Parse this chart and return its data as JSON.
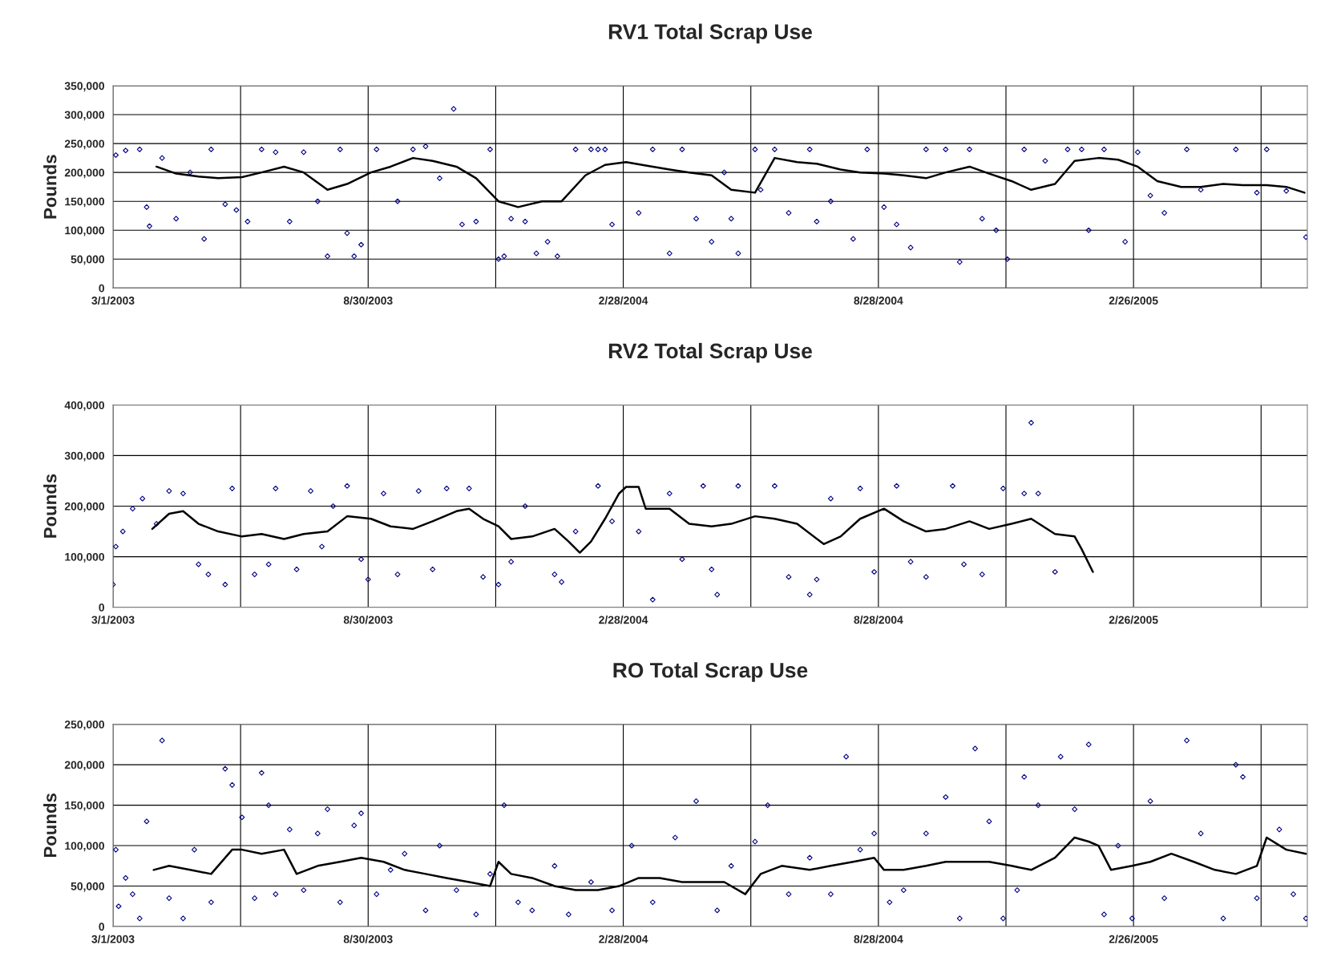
{
  "chart_data": [
    {
      "type": "scatter",
      "title": "RV1 Total Scrap Use",
      "ylabel": "Pounds",
      "grid": true,
      "xlim": [
        "2003-03-01",
        "2005-06-30"
      ],
      "xticks": [
        {
          "value": "2003-03-01",
          "label": "3/1/2003"
        },
        {
          "value": "2003-05-31",
          "label": null
        },
        {
          "value": "2003-08-30",
          "label": "8/30/2003"
        },
        {
          "value": "2003-11-29",
          "label": null
        },
        {
          "value": "2004-02-28",
          "label": "2/28/2004"
        },
        {
          "value": "2004-05-29",
          "label": null
        },
        {
          "value": "2004-08-28",
          "label": "8/28/2004"
        },
        {
          "value": "2004-11-27",
          "label": null
        },
        {
          "value": "2005-02-26",
          "label": "2/26/2005"
        },
        {
          "value": "2005-05-28",
          "label": null
        }
      ],
      "ylim": [
        0,
        350000
      ],
      "yticks": [
        0,
        {
          "value": 50000,
          "label": "50,000"
        },
        {
          "value": 100000,
          "label": "100,000"
        },
        {
          "value": 150000,
          "label": "150,000"
        },
        {
          "value": 200000,
          "label": "200,000"
        },
        {
          "value": 250000,
          "label": "250,000"
        },
        {
          "value": 300000,
          "label": "300,000"
        },
        {
          "value": 350000,
          "label": "350,000"
        }
      ],
      "series": [
        {
          "color": "#000080",
          "marker": "diamond",
          "x": [
            "2003-03-03",
            "2003-03-10",
            "2003-03-20",
            "2003-03-25",
            "2003-03-27",
            "2003-04-05",
            "2003-04-15",
            "2003-04-25",
            "2003-05-05",
            "2003-05-10",
            "2003-05-20",
            "2003-05-28",
            "2003-06-05",
            "2003-06-15",
            "2003-06-25",
            "2003-07-05",
            "2003-07-15",
            "2003-07-25",
            "2003-08-01",
            "2003-08-10",
            "2003-08-15",
            "2003-08-20",
            "2003-08-25",
            "2003-09-05",
            "2003-09-20",
            "2003-10-01",
            "2003-10-10",
            "2003-10-20",
            "2003-10-30",
            "2003-11-05",
            "2003-11-15",
            "2003-11-25",
            "2003-12-01",
            "2003-12-05",
            "2003-12-10",
            "2003-12-20",
            "2003-12-28",
            "2004-01-05",
            "2004-01-12",
            "2004-01-25",
            "2004-02-05",
            "2004-02-10",
            "2004-02-15",
            "2004-02-20",
            "2004-03-10",
            "2004-03-20",
            "2004-04-01",
            "2004-04-10",
            "2004-04-20",
            "2004-05-01",
            "2004-05-10",
            "2004-05-15",
            "2004-05-20",
            "2004-06-01",
            "2004-06-05",
            "2004-06-15",
            "2004-06-25",
            "2004-07-10",
            "2004-07-15",
            "2004-07-25",
            "2004-08-10",
            "2004-08-20",
            "2004-09-01",
            "2004-09-10",
            "2004-09-20",
            "2004-10-01",
            "2004-10-15",
            "2004-10-25",
            "2004-11-01",
            "2004-11-10",
            "2004-11-20",
            "2004-11-28",
            "2004-12-10",
            "2004-12-25",
            "2005-01-10",
            "2005-01-20",
            "2005-01-25",
            "2005-02-05",
            "2005-02-20",
            "2005-03-01",
            "2005-03-10",
            "2005-03-20",
            "2005-04-05",
            "2005-04-15",
            "2005-05-10",
            "2005-05-25",
            "2005-06-01",
            "2005-06-15",
            "2005-06-29"
          ],
          "values": [
            230000,
            238000,
            240000,
            140000,
            107000,
            225000,
            120000,
            200000,
            85000,
            240000,
            145000,
            135000,
            115000,
            240000,
            235000,
            115000,
            235000,
            150000,
            55000,
            240000,
            95000,
            55000,
            75000,
            240000,
            150000,
            240000,
            245000,
            190000,
            310000,
            110000,
            115000,
            240000,
            50000,
            55000,
            120000,
            115000,
            60000,
            80000,
            55000,
            240000,
            240000,
            240000,
            240000,
            110000,
            130000,
            240000,
            60000,
            240000,
            120000,
            80000,
            200000,
            120000,
            60000,
            240000,
            170000,
            240000,
            130000,
            240000,
            115000,
            150000,
            85000,
            240000,
            140000,
            110000,
            70000,
            240000,
            240000,
            45000,
            240000,
            120000,
            100000,
            50000,
            240000,
            220000,
            240000,
            240000,
            100000,
            240000,
            80000,
            235000,
            160000,
            130000,
            240000,
            170000,
            240000,
            165000,
            240000,
            168000,
            88000
          ]
        },
        {
          "type": "line",
          "color": "#000000",
          "marker": "none",
          "line_style": "solid",
          "x": [
            "2003-04-01",
            "2003-04-15",
            "2003-05-01",
            "2003-05-15",
            "2003-06-01",
            "2003-06-15",
            "2003-07-01",
            "2003-07-15",
            "2003-08-01",
            "2003-08-15",
            "2003-09-01",
            "2003-09-15",
            "2003-10-01",
            "2003-10-15",
            "2003-11-01",
            "2003-11-15",
            "2003-12-01",
            "2003-12-15",
            "2004-01-01",
            "2004-01-15",
            "2004-02-01",
            "2004-02-15",
            "2004-03-01",
            "2004-03-15",
            "2004-04-01",
            "2004-04-15",
            "2004-05-01",
            "2004-05-15",
            "2004-06-01",
            "2004-06-15",
            "2004-07-01",
            "2004-07-15",
            "2004-08-01",
            "2004-08-15",
            "2004-09-01",
            "2004-09-15",
            "2004-10-01",
            "2004-10-15",
            "2004-11-01",
            "2004-11-15",
            "2004-12-01",
            "2004-12-15",
            "2005-01-01",
            "2005-01-15",
            "2005-02-01",
            "2005-02-15",
            "2005-03-01",
            "2005-03-15",
            "2005-04-01",
            "2005-04-15",
            "2005-05-01",
            "2005-05-15",
            "2005-06-01",
            "2005-06-15",
            "2005-06-28"
          ],
          "values": [
            210000,
            198000,
            193000,
            190000,
            192000,
            200000,
            210000,
            200000,
            170000,
            180000,
            200000,
            210000,
            225000,
            220000,
            210000,
            190000,
            150000,
            140000,
            150000,
            150000,
            195000,
            213000,
            218000,
            212000,
            205000,
            200000,
            195000,
            170000,
            165000,
            225000,
            218000,
            215000,
            205000,
            200000,
            198000,
            195000,
            190000,
            200000,
            210000,
            198000,
            185000,
            170000,
            180000,
            220000,
            225000,
            222000,
            210000,
            185000,
            175000,
            175000,
            180000,
            178000,
            178000,
            175000,
            165000
          ]
        }
      ]
    },
    {
      "type": "scatter",
      "title": "RV2 Total Scrap Use",
      "ylabel": "Pounds",
      "grid": true,
      "xlim": [
        "2003-03-01",
        "2005-06-30"
      ],
      "xticks": [
        {
          "value": "2003-03-01",
          "label": "3/1/2003"
        },
        {
          "value": "2003-05-31",
          "label": null
        },
        {
          "value": "2003-08-30",
          "label": "8/30/2003"
        },
        {
          "value": "2003-11-29",
          "label": null
        },
        {
          "value": "2004-02-28",
          "label": "2/28/2004"
        },
        {
          "value": "2004-05-29",
          "label": null
        },
        {
          "value": "2004-08-28",
          "label": "8/28/2004"
        },
        {
          "value": "2004-11-27",
          "label": null
        },
        {
          "value": "2005-02-26",
          "label": "2/26/2005"
        },
        {
          "value": "2005-05-28",
          "label": null
        }
      ],
      "ylim": [
        0,
        400000
      ],
      "yticks": [
        0,
        {
          "value": 100000,
          "label": "100,000"
        },
        {
          "value": 200000,
          "label": "200,000"
        },
        {
          "value": 300000,
          "label": "300,000"
        },
        {
          "value": 400000,
          "label": "400,000"
        }
      ],
      "series": [
        {
          "color": "#000080",
          "marker": "diamond",
          "x": [
            "2003-03-01",
            "2003-03-03",
            "2003-03-08",
            "2003-03-15",
            "2003-03-22",
            "2003-04-01",
            "2003-04-10",
            "2003-04-20",
            "2003-05-01",
            "2003-05-08",
            "2003-05-20",
            "2003-05-25",
            "2003-06-10",
            "2003-06-20",
            "2003-06-25",
            "2003-07-10",
            "2003-07-20",
            "2003-07-28",
            "2003-08-05",
            "2003-08-15",
            "2003-08-25",
            "2003-08-30",
            "2003-09-10",
            "2003-09-20",
            "2003-10-05",
            "2003-10-15",
            "2003-10-25",
            "2003-11-10",
            "2003-11-20",
            "2003-12-01",
            "2003-12-10",
            "2003-12-20",
            "2004-01-10",
            "2004-01-15",
            "2004-01-25",
            "2004-02-10",
            "2004-02-20",
            "2004-03-10",
            "2004-03-20",
            "2004-04-01",
            "2004-04-10",
            "2004-04-25",
            "2004-05-01",
            "2004-05-05",
            "2004-05-20",
            "2004-06-15",
            "2004-06-25",
            "2004-07-10",
            "2004-07-15",
            "2004-07-25",
            "2004-08-15",
            "2004-08-25",
            "2004-09-10",
            "2004-09-20",
            "2004-10-01",
            "2004-10-20",
            "2004-10-28",
            "2004-11-10",
            "2004-11-25",
            "2004-12-10",
            "2004-12-15",
            "2004-12-20",
            "2005-01-01"
          ],
          "values": [
            45000,
            120000,
            150000,
            195000,
            215000,
            165000,
            230000,
            225000,
            85000,
            65000,
            45000,
            235000,
            65000,
            85000,
            235000,
            75000,
            230000,
            120000,
            200000,
            240000,
            95000,
            55000,
            225000,
            65000,
            230000,
            75000,
            235000,
            235000,
            60000,
            45000,
            90000,
            200000,
            65000,
            50000,
            150000,
            240000,
            170000,
            150000,
            15000,
            225000,
            95000,
            240000,
            75000,
            25000,
            240000,
            240000,
            60000,
            25000,
            55000,
            215000,
            235000,
            70000,
            240000,
            90000,
            60000,
            240000,
            85000,
            65000,
            235000,
            225000,
            365000,
            225000,
            70000
          ]
        },
        {
          "type": "line",
          "color": "#000000",
          "marker": "none",
          "line_style": "solid",
          "x": [
            "2003-03-29",
            "2003-04-10",
            "2003-04-20",
            "2003-05-01",
            "2003-05-15",
            "2003-06-01",
            "2003-06-15",
            "2003-07-01",
            "2003-07-15",
            "2003-08-01",
            "2003-08-15",
            "2003-09-01",
            "2003-09-15",
            "2003-10-01",
            "2003-10-15",
            "2003-11-01",
            "2003-11-10",
            "2003-11-20",
            "2003-12-01",
            "2003-12-10",
            "2003-12-25",
            "2004-01-10",
            "2004-01-20",
            "2004-01-28",
            "2004-02-05",
            "2004-02-15",
            "2004-02-25",
            "2004-03-01",
            "2004-03-10",
            "2004-03-15",
            "2004-04-01",
            "2004-04-15",
            "2004-05-01",
            "2004-05-15",
            "2004-06-01",
            "2004-06-15",
            "2004-07-01",
            "2004-07-20",
            "2004-08-01",
            "2004-08-15",
            "2004-09-01",
            "2004-09-15",
            "2004-10-01",
            "2004-10-15",
            "2004-11-01",
            "2004-11-15",
            "2004-12-01",
            "2004-12-15",
            "2005-01-01",
            "2005-01-15",
            "2005-01-20",
            "2005-01-28"
          ],
          "values": [
            155000,
            185000,
            190000,
            165000,
            150000,
            140000,
            145000,
            135000,
            145000,
            150000,
            180000,
            175000,
            160000,
            155000,
            170000,
            190000,
            195000,
            175000,
            160000,
            135000,
            140000,
            155000,
            130000,
            108000,
            130000,
            175000,
            225000,
            238000,
            238000,
            195000,
            195000,
            165000,
            160000,
            165000,
            180000,
            175000,
            165000,
            125000,
            140000,
            175000,
            195000,
            170000,
            150000,
            155000,
            170000,
            155000,
            165000,
            175000,
            145000,
            140000,
            115000,
            70000
          ]
        }
      ]
    },
    {
      "type": "scatter",
      "title": "RO Total Scrap Use",
      "ylabel": "Pounds",
      "grid": true,
      "xlim": [
        "2003-03-01",
        "2005-06-30"
      ],
      "xticks": [
        {
          "value": "2003-03-01",
          "label": "3/1/2003"
        },
        {
          "value": "2003-05-31",
          "label": null
        },
        {
          "value": "2003-08-30",
          "label": "8/30/2003"
        },
        {
          "value": "2003-11-29",
          "label": null
        },
        {
          "value": "2004-02-28",
          "label": "2/28/2004"
        },
        {
          "value": "2004-05-29",
          "label": null
        },
        {
          "value": "2004-08-28",
          "label": "8/28/2004"
        },
        {
          "value": "2004-11-27",
          "label": null
        },
        {
          "value": "2005-02-26",
          "label": "2/26/2005"
        },
        {
          "value": "2005-05-28",
          "label": null
        }
      ],
      "ylim": [
        0,
        250000
      ],
      "yticks": [
        0,
        {
          "value": 50000,
          "label": "50,000"
        },
        {
          "value": 100000,
          "label": "100,000"
        },
        {
          "value": 150000,
          "label": "150,000"
        },
        {
          "value": 200000,
          "label": "200,000"
        },
        {
          "value": 250000,
          "label": "250,000"
        }
      ],
      "series": [
        {
          "color": "#000080",
          "marker": "diamond",
          "x": [
            "2003-03-03",
            "2003-03-05",
            "2003-03-10",
            "2003-03-15",
            "2003-03-20",
            "2003-03-25",
            "2003-04-05",
            "2003-04-10",
            "2003-04-20",
            "2003-04-28",
            "2003-05-10",
            "2003-05-20",
            "2003-05-25",
            "2003-06-01",
            "2003-06-10",
            "2003-06-15",
            "2003-06-20",
            "2003-06-25",
            "2003-07-05",
            "2003-07-15",
            "2003-07-25",
            "2003-08-01",
            "2003-08-10",
            "2003-08-20",
            "2003-08-25",
            "2003-09-05",
            "2003-09-15",
            "2003-09-25",
            "2003-10-10",
            "2003-10-20",
            "2003-11-01",
            "2003-11-15",
            "2003-11-25",
            "2003-12-05",
            "2003-12-15",
            "2003-12-25",
            "2004-01-10",
            "2004-01-20",
            "2004-02-05",
            "2004-02-20",
            "2004-03-05",
            "2004-03-20",
            "2004-04-05",
            "2004-04-20",
            "2004-05-05",
            "2004-05-15",
            "2004-06-01",
            "2004-06-10",
            "2004-06-25",
            "2004-07-10",
            "2004-07-25",
            "2004-08-05",
            "2004-08-15",
            "2004-08-25",
            "2004-09-05",
            "2004-09-15",
            "2004-10-01",
            "2004-10-15",
            "2004-10-25",
            "2004-11-05",
            "2004-11-15",
            "2004-11-25",
            "2004-12-05",
            "2004-12-10",
            "2004-12-20",
            "2005-01-05",
            "2005-01-15",
            "2005-01-25",
            "2005-02-05",
            "2005-02-15",
            "2005-02-25",
            "2005-03-10",
            "2005-03-20",
            "2005-04-05",
            "2005-04-15",
            "2005-05-01",
            "2005-05-10",
            "2005-05-15",
            "2005-05-25",
            "2005-06-10",
            "2005-06-20",
            "2005-06-29"
          ],
          "values": [
            95000,
            25000,
            60000,
            40000,
            10000,
            130000,
            230000,
            35000,
            10000,
            95000,
            30000,
            195000,
            175000,
            135000,
            35000,
            190000,
            150000,
            40000,
            120000,
            45000,
            115000,
            145000,
            30000,
            125000,
            140000,
            40000,
            70000,
            90000,
            20000,
            100000,
            45000,
            15000,
            65000,
            150000,
            30000,
            20000,
            75000,
            15000,
            55000,
            20000,
            100000,
            30000,
            110000,
            155000,
            20000,
            75000,
            105000,
            150000,
            40000,
            85000,
            40000,
            210000,
            95000,
            115000,
            30000,
            45000,
            115000,
            160000,
            10000,
            220000,
            130000,
            10000,
            45000,
            185000,
            150000,
            210000,
            145000,
            225000,
            15000,
            100000,
            10000,
            155000,
            35000,
            230000,
            115000,
            10000,
            200000,
            185000,
            35000,
            120000,
            40000,
            10000
          ]
        },
        {
          "type": "line",
          "color": "#000000",
          "marker": "none",
          "line_style": "solid",
          "x": [
            "2003-03-30",
            "2003-04-10",
            "2003-04-25",
            "2003-05-10",
            "2003-05-25",
            "2003-06-01",
            "2003-06-15",
            "2003-07-01",
            "2003-07-10",
            "2003-07-25",
            "2003-08-10",
            "2003-08-25",
            "2003-09-10",
            "2003-09-25",
            "2003-10-10",
            "2003-10-25",
            "2003-11-10",
            "2003-11-25",
            "2003-12-01",
            "2003-12-10",
            "2003-12-25",
            "2004-01-10",
            "2004-01-25",
            "2004-02-10",
            "2004-02-25",
            "2004-03-10",
            "2004-03-25",
            "2004-04-10",
            "2004-04-25",
            "2004-05-10",
            "2004-05-25",
            "2004-06-05",
            "2004-06-20",
            "2004-07-10",
            "2004-07-25",
            "2004-08-10",
            "2004-08-25",
            "2004-09-01",
            "2004-09-15",
            "2004-10-01",
            "2004-10-15",
            "2004-11-01",
            "2004-11-15",
            "2004-12-01",
            "2004-12-15",
            "2005-01-01",
            "2005-01-15",
            "2005-01-25",
            "2005-02-01",
            "2005-02-10",
            "2005-02-25",
            "2005-03-10",
            "2005-03-25",
            "2005-04-10",
            "2005-04-25",
            "2005-05-10",
            "2005-05-25",
            "2005-06-01",
            "2005-06-15",
            "2005-06-29"
          ],
          "values": [
            70000,
            75000,
            70000,
            65000,
            95000,
            95000,
            90000,
            95000,
            65000,
            75000,
            80000,
            85000,
            80000,
            70000,
            65000,
            60000,
            55000,
            50000,
            80000,
            65000,
            60000,
            50000,
            45000,
            45000,
            50000,
            60000,
            60000,
            55000,
            55000,
            55000,
            40000,
            65000,
            75000,
            70000,
            75000,
            80000,
            85000,
            70000,
            70000,
            75000,
            80000,
            80000,
            80000,
            75000,
            70000,
            85000,
            110000,
            105000,
            100000,
            70000,
            75000,
            80000,
            90000,
            80000,
            70000,
            65000,
            75000,
            110000,
            95000,
            90000
          ]
        }
      ]
    }
  ]
}
